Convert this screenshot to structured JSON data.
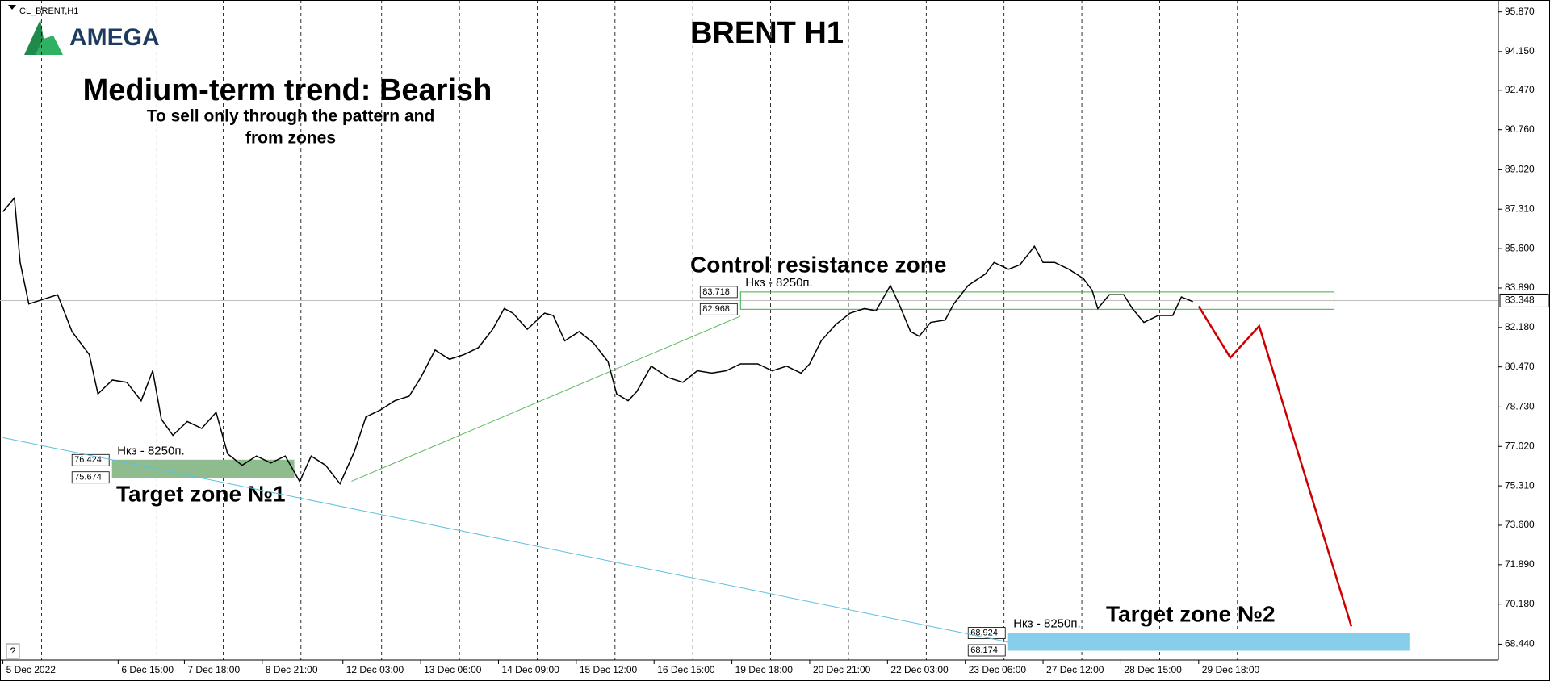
{
  "chart_data": {
    "type": "line",
    "symbol": "CL_BRENT,H1",
    "logo": "AMEGA",
    "title": "BRENT H1",
    "trend": "Medium-term trend: Bearish",
    "subtitle": [
      "To sell only through the pattern and",
      "from zones"
    ],
    "color": "#000000",
    "x": [
      0,
      4,
      6,
      9,
      14,
      19,
      24,
      30,
      33,
      38,
      43,
      48,
      52,
      55,
      59,
      64,
      69,
      74,
      78,
      83,
      88,
      93,
      98,
      103,
      107,
      112,
      117,
      122,
      126,
      131,
      136,
      141,
      145,
      150,
      155,
      160,
      165,
      170,
      174,
      177,
      182,
      188,
      191,
      195,
      200,
      205,
      210,
      213,
      217,
      220,
      225,
      231,
      236,
      241,
      246,
      251,
      256,
      262,
      267,
      272,
      277,
      280,
      284,
      289,
      294,
      299,
      303,
      308,
      311,
      315,
      318,
      322,
      327,
      330,
      335,
      341,
      344,
      349,
      353,
      358,
      361,
      365,
      370,
      375,
      378,
      380,
      384,
      389,
      392,
      396,
      401,
      406,
      409,
      413
    ],
    "values": [
      87.2,
      87.8,
      85.0,
      83.2,
      83.4,
      83.6,
      82.0,
      81.0,
      79.3,
      79.9,
      79.8,
      79.0,
      80.3,
      78.2,
      77.5,
      78.1,
      77.8,
      78.5,
      76.7,
      76.2,
      76.6,
      76.3,
      76.6,
      75.5,
      76.6,
      76.2,
      75.4,
      76.8,
      78.3,
      78.6,
      79.0,
      79.2,
      80.0,
      81.2,
      80.8,
      81.0,
      81.3,
      82.1,
      83.0,
      82.8,
      82.1,
      82.8,
      82.7,
      81.6,
      82.0,
      81.5,
      80.7,
      79.3,
      79.0,
      79.4,
      80.5,
      80.0,
      79.8,
      80.3,
      80.2,
      80.3,
      80.6,
      80.6,
      80.3,
      80.5,
      80.2,
      80.6,
      81.6,
      82.3,
      82.8,
      83.0,
      82.9,
      84.0,
      83.2,
      82.0,
      81.8,
      82.4,
      82.5,
      83.2,
      84.0,
      84.5,
      85.0,
      84.7,
      84.9,
      85.7,
      85.0,
      85.0,
      84.7,
      84.3,
      83.8,
      83.0,
      83.6,
      83.6,
      83.0,
      82.4,
      82.7,
      82.7,
      83.5,
      83.3
    ],
    "xlim": [
      -1,
      519
    ],
    "xticks": [
      {
        "value": 0,
        "label": "5 Dec 2022"
      },
      {
        "value": 40,
        "label": "6 Dec 15:00"
      },
      {
        "value": 63,
        "label": "7 Dec 18:00"
      },
      {
        "value": 90,
        "label": "8 Dec 21:00"
      },
      {
        "value": 118,
        "label": "12 Dec 03:00"
      },
      {
        "value": 145,
        "label": "13 Dec 06:00"
      },
      {
        "value": 172,
        "label": "14 Dec 09:00"
      },
      {
        "value": 199,
        "label": "15 Dec 12:00"
      },
      {
        "value": 226,
        "label": "16 Dec 15:00"
      },
      {
        "value": 253,
        "label": "19 Dec 18:00"
      },
      {
        "value": 280,
        "label": "20 Dec 21:00"
      },
      {
        "value": 307,
        "label": "22 Dec 03:00"
      },
      {
        "value": 334,
        "label": "23 Dec 06:00"
      },
      {
        "value": 361,
        "label": "27 Dec 12:00"
      },
      {
        "value": 388,
        "label": "28 Dec 15:00"
      },
      {
        "value": 415,
        "label": "29 Dec 18:00"
      }
    ],
    "ylim": [
      67.754,
      96.384
    ],
    "yticks": [
      {
        "value": 95.87,
        "label": "95.870"
      },
      {
        "value": 94.15,
        "label": "94.150"
      },
      {
        "value": 92.47,
        "label": "92.470"
      },
      {
        "value": 90.76,
        "label": "90.760"
      },
      {
        "value": 89.02,
        "label": "89.020"
      },
      {
        "value": 87.31,
        "label": "87.310"
      },
      {
        "value": 85.6,
        "label": "85.600"
      },
      {
        "value": 83.89,
        "label": "83.890"
      },
      {
        "value": 82.18,
        "label": "82.180"
      },
      {
        "value": 80.47,
        "label": "80.470"
      },
      {
        "value": 78.73,
        "label": "78.730"
      },
      {
        "value": 77.02,
        "label": "77.020"
      },
      {
        "value": 75.31,
        "label": "75.310"
      },
      {
        "value": 73.6,
        "label": "73.600"
      },
      {
        "value": 71.89,
        "label": "71.890"
      },
      {
        "value": 70.18,
        "label": "70.180"
      },
      {
        "value": 68.44,
        "label": "68.440"
      }
    ],
    "current_price": 83.348,
    "zones": [
      {
        "top": 76.424,
        "bottom": 75.674,
        "x": [
          38,
          101
        ],
        "note": "Нкз - 8250п.",
        "label": "Target zone №1",
        "fill": "#8fbc8f",
        "stroke": "#8fbc8f"
      },
      {
        "top": 83.718,
        "bottom": 82.968,
        "x": [
          256,
          462
        ],
        "note": "Нкз - 8250п.",
        "label": "Control resistance zone",
        "fill": "none",
        "stroke": "#3cb043"
      },
      {
        "top": 68.924,
        "bottom": 68.174,
        "x": [
          349,
          488
        ],
        "note": "Нкз - 8250п.",
        "label": "Target zone №2",
        "fill": "#87ceeb",
        "stroke": "#87ceeb"
      }
    ],
    "lines": [
      {
        "x": [
          121,
          256
        ],
        "values": [
          75.51,
          82.67
        ],
        "color": "#5cb85c"
      },
      {
        "x": [
          0,
          349
        ],
        "values": [
          77.4,
          68.53
        ],
        "color": "#5bc0de"
      },
      {
        "x": [
          415,
          426,
          436,
          468
        ],
        "values": [
          83.1,
          80.87,
          82.24,
          69.21
        ],
        "color": "#cc0000"
      }
    ],
    "help": "?"
  }
}
